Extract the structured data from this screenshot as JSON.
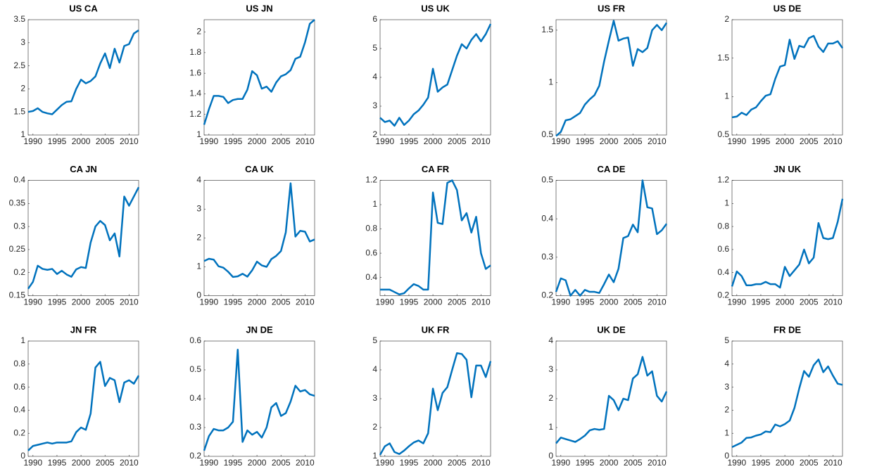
{
  "chart_data": [
    {
      "type": "line",
      "title": "US CA",
      "x": [
        1989,
        1990,
        1991,
        1992,
        1993,
        1994,
        1995,
        1996,
        1997,
        1998,
        1999,
        2000,
        2001,
        2002,
        2003,
        2004,
        2005,
        2006,
        2007,
        2008,
        2009,
        2010,
        2011,
        2012
      ],
      "xlim": [
        1989,
        2012
      ],
      "xticks": [
        1990,
        1995,
        2000,
        2005,
        2010
      ],
      "ylim": [
        1,
        3.5
      ],
      "yticks": [
        1,
        1.5,
        2,
        2.5,
        3,
        3.5
      ],
      "color": "#0072bd",
      "values": [
        1.5,
        1.52,
        1.58,
        1.5,
        1.47,
        1.45,
        1.55,
        1.65,
        1.72,
        1.73,
        2.0,
        2.2,
        2.12,
        2.17,
        2.27,
        2.55,
        2.77,
        2.45,
        2.87,
        2.57,
        2.93,
        2.97,
        3.2,
        3.27
      ]
    },
    {
      "type": "line",
      "title": "US JN",
      "x": [
        1989,
        1990,
        1991,
        1992,
        1993,
        1994,
        1995,
        1996,
        1997,
        1998,
        1999,
        2000,
        2001,
        2002,
        2003,
        2004,
        2005,
        2006,
        2007,
        2008,
        2009,
        2010,
        2011,
        2012
      ],
      "xlim": [
        1989,
        2012
      ],
      "xticks": [
        1990,
        1995,
        2000,
        2005,
        2010
      ],
      "ylim": [
        1,
        2.12
      ],
      "yticks": [
        1,
        1.2,
        1.4,
        1.6,
        1.8,
        2
      ],
      "color": "#0072bd",
      "values": [
        1.1,
        1.25,
        1.38,
        1.38,
        1.37,
        1.31,
        1.34,
        1.35,
        1.35,
        1.44,
        1.62,
        1.58,
        1.45,
        1.47,
        1.42,
        1.51,
        1.57,
        1.59,
        1.63,
        1.74,
        1.76,
        1.9,
        2.08,
        2.12
      ]
    },
    {
      "type": "line",
      "title": "US UK",
      "x": [
        1989,
        1990,
        1991,
        1992,
        1993,
        1994,
        1995,
        1996,
        1997,
        1998,
        1999,
        2000,
        2001,
        2002,
        2003,
        2004,
        2005,
        2006,
        2007,
        2008,
        2009,
        2010,
        2011,
        2012
      ],
      "xlim": [
        1989,
        2012
      ],
      "xticks": [
        1990,
        1995,
        2000,
        2005,
        2010
      ],
      "ylim": [
        2,
        6
      ],
      "yticks": [
        2,
        3,
        4,
        5,
        6
      ],
      "color": "#0072bd",
      "values": [
        2.6,
        2.45,
        2.5,
        2.32,
        2.6,
        2.35,
        2.5,
        2.72,
        2.85,
        3.05,
        3.3,
        4.3,
        3.5,
        3.65,
        3.75,
        4.25,
        4.75,
        5.15,
        5.0,
        5.3,
        5.5,
        5.25,
        5.5,
        5.85
      ]
    },
    {
      "type": "line",
      "title": "US FR",
      "x": [
        1989,
        1990,
        1991,
        1992,
        1993,
        1994,
        1995,
        1996,
        1997,
        1998,
        1999,
        2000,
        2001,
        2002,
        2003,
        2004,
        2005,
        2006,
        2007,
        2008,
        2009,
        2010,
        2011,
        2012
      ],
      "xlim": [
        1989,
        2012
      ],
      "xticks": [
        1990,
        1995,
        2000,
        2005,
        2010
      ],
      "ylim": [
        0.5,
        1.6
      ],
      "yticks": [
        0.5,
        1,
        1.5
      ],
      "color": "#0072bd",
      "values": [
        0.49,
        0.53,
        0.64,
        0.65,
        0.68,
        0.71,
        0.79,
        0.84,
        0.88,
        0.97,
        1.2,
        1.4,
        1.59,
        1.4,
        1.42,
        1.43,
        1.16,
        1.32,
        1.29,
        1.33,
        1.5,
        1.55,
        1.5,
        1.57
      ]
    },
    {
      "type": "line",
      "title": "US DE",
      "x": [
        1989,
        1990,
        1991,
        1992,
        1993,
        1994,
        1995,
        1996,
        1997,
        1998,
        1999,
        2000,
        2001,
        2002,
        2003,
        2004,
        2005,
        2006,
        2007,
        2008,
        2009,
        2010,
        2011,
        2012
      ],
      "xlim": [
        1989,
        2012
      ],
      "xticks": [
        1990,
        1995,
        2000,
        2005,
        2010
      ],
      "ylim": [
        0.5,
        2
      ],
      "yticks": [
        0.5,
        1,
        1.5,
        2
      ],
      "color": "#0072bd",
      "values": [
        0.73,
        0.74,
        0.79,
        0.76,
        0.83,
        0.86,
        0.94,
        1.01,
        1.03,
        1.23,
        1.39,
        1.41,
        1.74,
        1.49,
        1.66,
        1.64,
        1.76,
        1.79,
        1.65,
        1.58,
        1.69,
        1.69,
        1.72,
        1.63
      ]
    },
    {
      "type": "line",
      "title": "CA JN",
      "x": [
        1989,
        1990,
        1991,
        1992,
        1993,
        1994,
        1995,
        1996,
        1997,
        1998,
        1999,
        2000,
        2001,
        2002,
        2003,
        2004,
        2005,
        2006,
        2007,
        2008,
        2009,
        2010,
        2011,
        2012
      ],
      "xlim": [
        1989,
        2012
      ],
      "xticks": [
        1990,
        1995,
        2000,
        2005,
        2010
      ],
      "ylim": [
        0.15,
        0.4
      ],
      "yticks": [
        0.15,
        0.2,
        0.25,
        0.3,
        0.35,
        0.4
      ],
      "color": "#0072bd",
      "values": [
        0.165,
        0.18,
        0.215,
        0.208,
        0.206,
        0.208,
        0.197,
        0.204,
        0.196,
        0.191,
        0.207,
        0.212,
        0.21,
        0.265,
        0.3,
        0.312,
        0.303,
        0.27,
        0.285,
        0.235,
        0.365,
        0.345,
        0.365,
        0.385
      ]
    },
    {
      "type": "line",
      "title": "CA UK",
      "x": [
        1989,
        1990,
        1991,
        1992,
        1993,
        1994,
        1995,
        1996,
        1997,
        1998,
        1999,
        2000,
        2001,
        2002,
        2003,
        2004,
        2005,
        2006,
        2007,
        2008,
        2009,
        2010,
        2011,
        2012
      ],
      "xlim": [
        1989,
        2012
      ],
      "xticks": [
        1990,
        1995,
        2000,
        2005,
        2010
      ],
      "ylim": [
        0,
        4
      ],
      "yticks": [
        0,
        1,
        2,
        3,
        4
      ],
      "color": "#0072bd",
      "values": [
        1.2,
        1.28,
        1.25,
        1.02,
        0.97,
        0.83,
        0.65,
        0.67,
        0.76,
        0.66,
        0.88,
        1.18,
        1.05,
        1.0,
        1.27,
        1.38,
        1.55,
        2.2,
        3.9,
        2.05,
        2.25,
        2.22,
        1.88,
        1.95
      ]
    },
    {
      "type": "line",
      "title": "CA FR",
      "x": [
        1989,
        1990,
        1991,
        1992,
        1993,
        1994,
        1995,
        1996,
        1997,
        1998,
        1999,
        2000,
        2001,
        2002,
        2003,
        2004,
        2005,
        2006,
        2007,
        2008,
        2009,
        2010,
        2011,
        2012
      ],
      "xlim": [
        1989,
        2012
      ],
      "xticks": [
        1990,
        1995,
        2000,
        2005,
        2010
      ],
      "ylim": [
        0.25,
        1.2
      ],
      "yticks": [
        0.4,
        0.6,
        0.8,
        1,
        1.2
      ],
      "color": "#0072bd",
      "values": [
        0.3,
        0.3,
        0.3,
        0.28,
        0.26,
        0.27,
        0.31,
        0.345,
        0.33,
        0.3,
        0.3,
        1.1,
        0.85,
        0.84,
        1.18,
        1.2,
        1.12,
        0.87,
        0.93,
        0.77,
        0.9,
        0.6,
        0.47,
        0.5
      ]
    },
    {
      "type": "line",
      "title": "CA DE",
      "x": [
        1989,
        1990,
        1991,
        1992,
        1993,
        1994,
        1995,
        1996,
        1997,
        1998,
        1999,
        2000,
        2001,
        2002,
        2003,
        2004,
        2005,
        2006,
        2007,
        2008,
        2009,
        2010,
        2011,
        2012
      ],
      "xlim": [
        1989,
        2012
      ],
      "xticks": [
        1990,
        1995,
        2000,
        2005,
        2010
      ],
      "ylim": [
        0.2,
        0.5
      ],
      "yticks": [
        0.2,
        0.3,
        0.4,
        0.5
      ],
      "color": "#0072bd",
      "values": [
        0.21,
        0.245,
        0.24,
        0.2,
        0.215,
        0.2,
        0.215,
        0.21,
        0.21,
        0.207,
        0.23,
        0.255,
        0.235,
        0.27,
        0.35,
        0.355,
        0.385,
        0.365,
        0.5,
        0.43,
        0.427,
        0.36,
        0.37,
        0.387
      ]
    },
    {
      "type": "line",
      "title": "JN UK",
      "x": [
        1989,
        1990,
        1991,
        1992,
        1993,
        1994,
        1995,
        1996,
        1997,
        1998,
        1999,
        2000,
        2001,
        2002,
        2003,
        2004,
        2005,
        2006,
        2007,
        2008,
        2009,
        2010,
        2011,
        2012
      ],
      "xlim": [
        1989,
        2012
      ],
      "xticks": [
        1990,
        1995,
        2000,
        2005,
        2010
      ],
      "ylim": [
        0.2,
        1.2
      ],
      "yticks": [
        0.2,
        0.4,
        0.6,
        0.8,
        1,
        1.2
      ],
      "color": "#0072bd",
      "values": [
        0.28,
        0.41,
        0.37,
        0.29,
        0.29,
        0.3,
        0.3,
        0.32,
        0.3,
        0.3,
        0.27,
        0.45,
        0.37,
        0.42,
        0.47,
        0.6,
        0.48,
        0.53,
        0.83,
        0.7,
        0.69,
        0.7,
        0.84,
        1.04
      ]
    },
    {
      "type": "line",
      "title": "JN FR",
      "x": [
        1989,
        1990,
        1991,
        1992,
        1993,
        1994,
        1995,
        1996,
        1997,
        1998,
        1999,
        2000,
        2001,
        2002,
        2003,
        2004,
        2005,
        2006,
        2007,
        2008,
        2009,
        2010,
        2011,
        2012
      ],
      "xlim": [
        1989,
        2012
      ],
      "xticks": [
        1990,
        1995,
        2000,
        2005,
        2010
      ],
      "ylim": [
        0,
        1
      ],
      "yticks": [
        0,
        0.2,
        0.4,
        0.6,
        0.8,
        1
      ],
      "color": "#0072bd",
      "values": [
        0.05,
        0.09,
        0.1,
        0.11,
        0.12,
        0.11,
        0.12,
        0.12,
        0.12,
        0.13,
        0.21,
        0.25,
        0.23,
        0.37,
        0.77,
        0.82,
        0.61,
        0.68,
        0.66,
        0.47,
        0.64,
        0.66,
        0.63,
        0.7
      ]
    },
    {
      "type": "line",
      "title": "JN DE",
      "x": [
        1989,
        1990,
        1991,
        1992,
        1993,
        1994,
        1995,
        1996,
        1997,
        1998,
        1999,
        2000,
        2001,
        2002,
        2003,
        2004,
        2005,
        2006,
        2007,
        2008,
        2009,
        2010,
        2011,
        2012
      ],
      "xlim": [
        1989,
        2012
      ],
      "xticks": [
        1990,
        1995,
        2000,
        2005,
        2010
      ],
      "ylim": [
        0.2,
        0.6
      ],
      "yticks": [
        0.2,
        0.3,
        0.4,
        0.5,
        0.6
      ],
      "color": "#0072bd",
      "values": [
        0.22,
        0.27,
        0.295,
        0.29,
        0.29,
        0.3,
        0.32,
        0.57,
        0.25,
        0.29,
        0.275,
        0.285,
        0.265,
        0.3,
        0.37,
        0.385,
        0.34,
        0.35,
        0.39,
        0.445,
        0.425,
        0.43,
        0.415,
        0.41
      ]
    },
    {
      "type": "line",
      "title": "UK FR",
      "x": [
        1989,
        1990,
        1991,
        1992,
        1993,
        1994,
        1995,
        1996,
        1997,
        1998,
        1999,
        2000,
        2001,
        2002,
        2003,
        2004,
        2005,
        2006,
        2007,
        2008,
        2009,
        2010,
        2011,
        2012
      ],
      "xlim": [
        1989,
        2012
      ],
      "xticks": [
        1990,
        1995,
        2000,
        2005,
        2010
      ],
      "ylim": [
        1,
        5
      ],
      "yticks": [
        1,
        2,
        3,
        4,
        5
      ],
      "color": "#0072bd",
      "values": [
        1.05,
        1.35,
        1.45,
        1.15,
        1.08,
        1.2,
        1.35,
        1.48,
        1.55,
        1.45,
        1.8,
        3.35,
        2.6,
        3.2,
        3.4,
        4.0,
        4.58,
        4.55,
        4.35,
        3.05,
        4.15,
        4.15,
        3.75,
        4.3
      ]
    },
    {
      "type": "line",
      "title": "UK DE",
      "x": [
        1989,
        1990,
        1991,
        1992,
        1993,
        1994,
        1995,
        1996,
        1997,
        1998,
        1999,
        2000,
        2001,
        2002,
        2003,
        2004,
        2005,
        2006,
        2007,
        2008,
        2009,
        2010,
        2011,
        2012
      ],
      "xlim": [
        1989,
        2012
      ],
      "xticks": [
        1990,
        1995,
        2000,
        2005,
        2010
      ],
      "ylim": [
        0,
        4
      ],
      "yticks": [
        0,
        1,
        2,
        3,
        4
      ],
      "color": "#0072bd",
      "values": [
        0.45,
        0.65,
        0.6,
        0.55,
        0.5,
        0.6,
        0.72,
        0.9,
        0.95,
        0.92,
        0.95,
        2.1,
        1.95,
        1.6,
        2.0,
        1.95,
        2.7,
        2.85,
        3.45,
        2.8,
        2.95,
        2.1,
        1.9,
        2.25
      ]
    },
    {
      "type": "line",
      "title": "FR DE",
      "x": [
        1989,
        1990,
        1991,
        1992,
        1993,
        1994,
        1995,
        1996,
        1997,
        1998,
        1999,
        2000,
        2001,
        2002,
        2003,
        2004,
        2005,
        2006,
        2007,
        2008,
        2009,
        2010,
        2011,
        2012
      ],
      "xlim": [
        1989,
        2012
      ],
      "xticks": [
        1990,
        1995,
        2000,
        2005,
        2010
      ],
      "ylim": [
        0,
        5
      ],
      "yticks": [
        0,
        1,
        2,
        3,
        4,
        5
      ],
      "color": "#0072bd",
      "values": [
        0.4,
        0.5,
        0.6,
        0.8,
        0.82,
        0.9,
        0.95,
        1.08,
        1.05,
        1.38,
        1.3,
        1.4,
        1.55,
        2.1,
        2.95,
        3.7,
        3.45,
        3.95,
        4.2,
        3.65,
        3.9,
        3.5,
        3.15,
        3.1
      ]
    }
  ]
}
